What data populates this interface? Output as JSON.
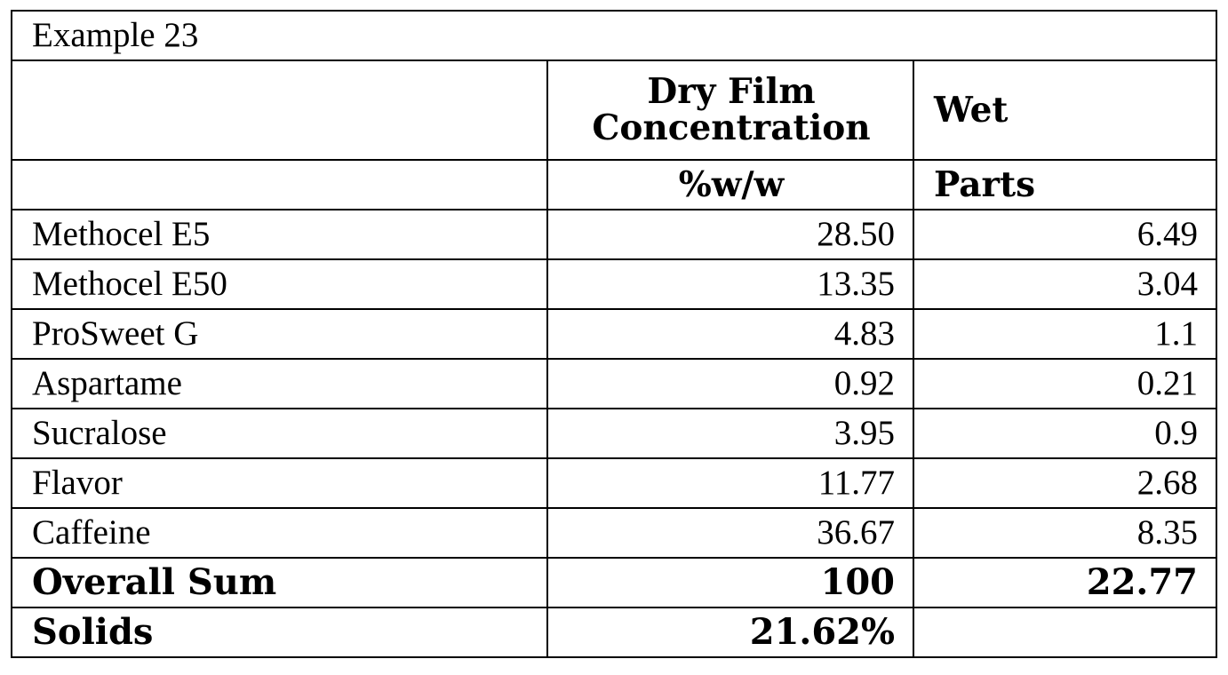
{
  "table": {
    "title": "Example 23",
    "header": {
      "col1": "",
      "col2_line1": "Dry Film",
      "col2_line2": "Concentration",
      "col3": "Wet"
    },
    "units": {
      "col1": "",
      "col2": "%w/w",
      "col3": "Parts"
    },
    "rows": [
      {
        "name": "Methocel E5",
        "dry": "28.50",
        "wet": "6.49"
      },
      {
        "name": "Methocel E50",
        "dry": "13.35",
        "wet": "3.04"
      },
      {
        "name": "ProSweet G",
        "dry": "4.83",
        "wet": "1.1"
      },
      {
        "name": "Aspartame",
        "dry": "0.92",
        "wet": "0.21"
      },
      {
        "name": "Sucralose",
        "dry": "3.95",
        "wet": "0.9"
      },
      {
        "name": "Flavor",
        "dry": "11.77",
        "wet": "2.68"
      },
      {
        "name": "Caffeine",
        "dry": "36.67",
        "wet": "8.35"
      }
    ],
    "sum_row": {
      "name": "Overall Sum",
      "dry": "100",
      "wet": "22.77"
    },
    "solids_row": {
      "name": "Solids",
      "dry": "21.62%",
      "wet": ""
    }
  }
}
